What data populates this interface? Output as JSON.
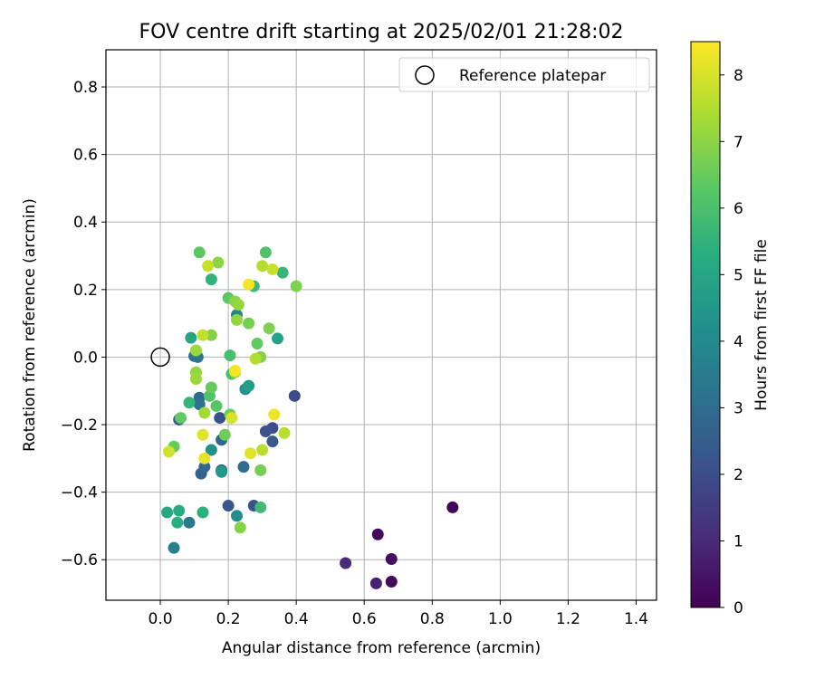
{
  "chart_data": {
    "type": "scatter",
    "title": "FOV centre drift starting at 2025/02/01 21:28:02",
    "xlabel": "Angular distance from reference (arcmin)",
    "ylabel": "Rotation from reference (arcmin)",
    "xlim": [
      -0.16,
      1.46
    ],
    "ylim": [
      -0.72,
      0.91
    ],
    "xticks": [
      0.0,
      0.2,
      0.4,
      0.6,
      0.8,
      1.0,
      1.2,
      1.4
    ],
    "xtick_labels": [
      "0.0",
      "0.2",
      "0.4",
      "0.6",
      "0.8",
      "1.0",
      "1.2",
      "1.4"
    ],
    "yticks": [
      -0.6,
      -0.4,
      -0.2,
      0.0,
      0.2,
      0.4,
      0.6,
      0.8
    ],
    "ytick_labels": [
      "−0.6",
      "−0.4",
      "−0.2",
      "0.0",
      "0.2",
      "0.4",
      "0.6",
      "0.8"
    ],
    "grid": true,
    "legend": {
      "position": "top-right",
      "entries": [
        "Reference platepar"
      ]
    },
    "reference_point": {
      "x": 0.0,
      "y": 0.0
    },
    "colorbar": {
      "label": "Hours from first FF file",
      "min": 0,
      "max": 8.5,
      "ticks": [
        0,
        1,
        2,
        3,
        4,
        5,
        6,
        7,
        8
      ],
      "tick_labels": [
        "0",
        "1",
        "2",
        "3",
        "4",
        "5",
        "6",
        "7",
        "8"
      ],
      "colormap": "viridis"
    },
    "points": [
      {
        "x": 0.86,
        "y": -0.445,
        "c": 0.1
      },
      {
        "x": 0.64,
        "y": -0.525,
        "c": 0.2
      },
      {
        "x": 0.68,
        "y": -0.598,
        "c": 0.3
      },
      {
        "x": 0.68,
        "y": -0.665,
        "c": 0.2
      },
      {
        "x": 0.635,
        "y": -0.67,
        "c": 0.8
      },
      {
        "x": 0.545,
        "y": -0.61,
        "c": 1.0
      },
      {
        "x": 0.395,
        "y": -0.115,
        "c": 1.9
      },
      {
        "x": 0.33,
        "y": -0.21,
        "c": 2.0
      },
      {
        "x": 0.31,
        "y": -0.22,
        "c": 2.2
      },
      {
        "x": 0.33,
        "y": -0.25,
        "c": 2.3
      },
      {
        "x": 0.275,
        "y": -0.44,
        "c": 2.2
      },
      {
        "x": 0.2,
        "y": -0.44,
        "c": 2.3
      },
      {
        "x": 0.175,
        "y": -0.18,
        "c": 2.1
      },
      {
        "x": 0.055,
        "y": -0.185,
        "c": 2.5
      },
      {
        "x": 0.12,
        "y": -0.345,
        "c": 2.7
      },
      {
        "x": 0.13,
        "y": -0.325,
        "c": 2.8
      },
      {
        "x": 0.18,
        "y": -0.245,
        "c": 2.8
      },
      {
        "x": 0.18,
        "y": -0.335,
        "c": 2.9
      },
      {
        "x": 0.245,
        "y": -0.325,
        "c": 3.0
      },
      {
        "x": 0.1,
        "y": 0.003,
        "c": 3.1
      },
      {
        "x": 0.115,
        "y": -0.12,
        "c": 3.0
      },
      {
        "x": 0.115,
        "y": -0.14,
        "c": 3.2
      },
      {
        "x": 0.11,
        "y": 0.0,
        "c": 3.4
      },
      {
        "x": 0.085,
        "y": -0.49,
        "c": 3.4
      },
      {
        "x": 0.04,
        "y": -0.565,
        "c": 3.6
      },
      {
        "x": 0.225,
        "y": 0.125,
        "c": 3.8
      },
      {
        "x": 0.225,
        "y": -0.47,
        "c": 4.1
      },
      {
        "x": 0.25,
        "y": -0.095,
        "c": 4.2
      },
      {
        "x": 0.15,
        "y": -0.275,
        "c": 4.3
      },
      {
        "x": 0.18,
        "y": -0.34,
        "c": 4.5
      },
      {
        "x": 0.26,
        "y": -0.085,
        "c": 4.7
      },
      {
        "x": 0.345,
        "y": 0.055,
        "c": 4.9
      },
      {
        "x": 0.09,
        "y": 0.057,
        "c": 5.0
      },
      {
        "x": 0.02,
        "y": -0.46,
        "c": 5.1
      },
      {
        "x": 0.055,
        "y": -0.455,
        "c": 5.2
      },
      {
        "x": 0.05,
        "y": -0.49,
        "c": 5.3
      },
      {
        "x": 0.125,
        "y": -0.46,
        "c": 5.4
      },
      {
        "x": 0.085,
        "y": -0.135,
        "c": 5.6
      },
      {
        "x": 0.15,
        "y": 0.23,
        "c": 5.5
      },
      {
        "x": 0.36,
        "y": 0.25,
        "c": 5.6
      },
      {
        "x": 0.275,
        "y": 0.21,
        "c": 5.7
      },
      {
        "x": 0.295,
        "y": -0.445,
        "c": 5.8
      },
      {
        "x": 0.205,
        "y": 0.005,
        "c": 5.9
      },
      {
        "x": 0.21,
        "y": -0.05,
        "c": 6.0
      },
      {
        "x": 0.31,
        "y": 0.31,
        "c": 6.1
      },
      {
        "x": 0.145,
        "y": -0.115,
        "c": 6.1
      },
      {
        "x": 0.165,
        "y": -0.145,
        "c": 6.2
      },
      {
        "x": 0.115,
        "y": 0.31,
        "c": 6.3
      },
      {
        "x": 0.2,
        "y": 0.175,
        "c": 6.3
      },
      {
        "x": 0.285,
        "y": 0.04,
        "c": 6.4
      },
      {
        "x": 0.06,
        "y": -0.18,
        "c": 6.4
      },
      {
        "x": 0.04,
        "y": -0.265,
        "c": 6.5
      },
      {
        "x": 0.15,
        "y": -0.09,
        "c": 6.5
      },
      {
        "x": 0.19,
        "y": -0.23,
        "c": 6.6
      },
      {
        "x": 0.205,
        "y": -0.17,
        "c": 6.6
      },
      {
        "x": 0.295,
        "y": -0.335,
        "c": 6.7
      },
      {
        "x": 0.26,
        "y": 0.1,
        "c": 6.7
      },
      {
        "x": 0.4,
        "y": 0.21,
        "c": 6.8
      },
      {
        "x": 0.32,
        "y": 0.085,
        "c": 6.8
      },
      {
        "x": 0.15,
        "y": 0.065,
        "c": 6.9
      },
      {
        "x": 0.295,
        "y": 0.0,
        "c": 6.9
      },
      {
        "x": 0.17,
        "y": 0.28,
        "c": 7.0
      },
      {
        "x": 0.22,
        "y": 0.165,
        "c": 7.0
      },
      {
        "x": 0.23,
        "y": 0.155,
        "c": 7.1
      },
      {
        "x": 0.225,
        "y": 0.11,
        "c": 7.1
      },
      {
        "x": 0.105,
        "y": -0.045,
        "c": 7.1
      },
      {
        "x": 0.105,
        "y": -0.065,
        "c": 7.2
      },
      {
        "x": 0.105,
        "y": 0.02,
        "c": 7.2
      },
      {
        "x": 0.13,
        "y": -0.165,
        "c": 7.3
      },
      {
        "x": 0.235,
        "y": -0.505,
        "c": 6.9
      },
      {
        "x": 0.22,
        "y": -0.045,
        "c": 7.4
      },
      {
        "x": 0.3,
        "y": 0.27,
        "c": 7.5
      },
      {
        "x": 0.28,
        "y": -0.005,
        "c": 7.5
      },
      {
        "x": 0.3,
        "y": -0.275,
        "c": 7.6
      },
      {
        "x": 0.365,
        "y": -0.225,
        "c": 7.6
      },
      {
        "x": 0.125,
        "y": 0.065,
        "c": 7.7
      },
      {
        "x": 0.14,
        "y": 0.27,
        "c": 7.8
      },
      {
        "x": 0.33,
        "y": 0.26,
        "c": 7.8
      },
      {
        "x": 0.025,
        "y": -0.28,
        "c": 7.9
      },
      {
        "x": 0.21,
        "y": -0.18,
        "c": 8.0
      },
      {
        "x": 0.265,
        "y": -0.285,
        "c": 8.1
      },
      {
        "x": 0.125,
        "y": -0.23,
        "c": 8.1
      },
      {
        "x": 0.13,
        "y": -0.3,
        "c": 8.2
      },
      {
        "x": 0.335,
        "y": -0.17,
        "c": 8.3
      },
      {
        "x": 0.26,
        "y": 0.215,
        "c": 8.4
      },
      {
        "x": 0.22,
        "y": -0.04,
        "c": 8.4
      }
    ]
  }
}
